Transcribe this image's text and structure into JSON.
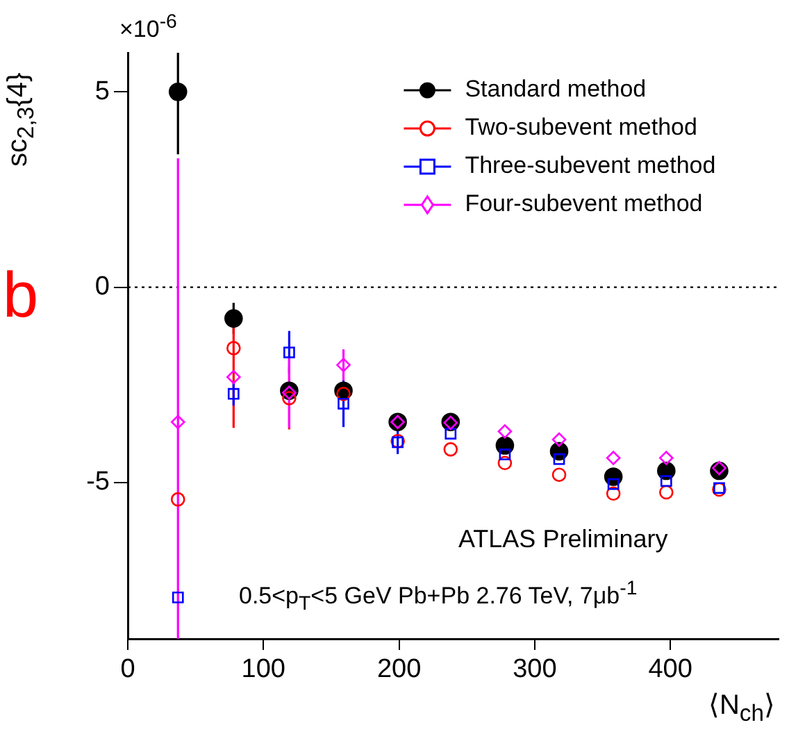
{
  "chart_data": {
    "type": "scatter",
    "ylabel": "sc$_{2,3}${4}",
    "xlabel": "⟨N$_{ch}$⟩",
    "x": [
      37,
      78,
      119,
      159,
      199,
      238,
      278,
      318,
      358,
      397,
      436
    ],
    "xlim": [
      0,
      480
    ],
    "xticks": [
      0,
      100,
      200,
      300,
      400
    ],
    "ylim": [
      -9,
      6
    ],
    "yticks": [
      -5,
      0,
      5
    ],
    "grid": false,
    "legend": "top right",
    "ref_lines": [
      {
        "axis": "y",
        "value": 0,
        "line_style": "dotted",
        "color": "#000000"
      }
    ],
    "annotations": [
      "×10$^{-6}$",
      "ATLAS Preliminary",
      "0.5<p$_{T}$<5 GeV   Pb+Pb 2.76 TeV, 7μb$^{-1}$",
      "b"
    ],
    "series": [
      {
        "name": "Standard method",
        "color": "#000000",
        "marker": "circle",
        "values": [
          5.0,
          -0.8,
          -2.65,
          -2.65,
          -3.45,
          -3.45,
          -4.05,
          -4.2,
          -4.85,
          -4.7,
          -4.7
        ],
        "errors": [
          [
            3.4,
            6
          ],
          0.4,
          0.2,
          0.2,
          null,
          null,
          null,
          null,
          null,
          null,
          null
        ]
      },
      {
        "name": "Two-subevent method",
        "color": "#ff0000",
        "marker": "circle",
        "values": [
          -5.43,
          -1.56,
          -2.84,
          -2.73,
          -3.94,
          -4.15,
          -4.5,
          -4.8,
          -5.28,
          -5.25,
          -5.18
        ],
        "errors": [
          null,
          [
            -3.6,
            -0.9
          ],
          0.8,
          null,
          null,
          null,
          null,
          null,
          null,
          null,
          null
        ]
      },
      {
        "name": "Three-subevent method",
        "color": "#0000ff",
        "marker": "square",
        "values": [
          -7.94,
          -2.73,
          -1.67,
          -2.98,
          -3.97,
          -3.75,
          -4.28,
          -4.4,
          -5.04,
          -4.96,
          -5.14
        ],
        "errors": [
          null,
          0.3,
          0.55,
          0.6,
          0.3,
          null,
          null,
          null,
          null,
          null,
          null
        ]
      },
      {
        "name": "Four-subevent method",
        "color": "#ff00ff",
        "marker": "diamond",
        "values": [
          -3.45,
          -2.3,
          -2.7,
          -1.99,
          -3.45,
          -3.47,
          -3.69,
          -3.9,
          -4.37,
          -4.37,
          -4.63
        ],
        "errors": [
          [
            -9,
            3.3
          ],
          null,
          0.9,
          0.4,
          null,
          null,
          null,
          null,
          null,
          null,
          null
        ]
      }
    ]
  }
}
